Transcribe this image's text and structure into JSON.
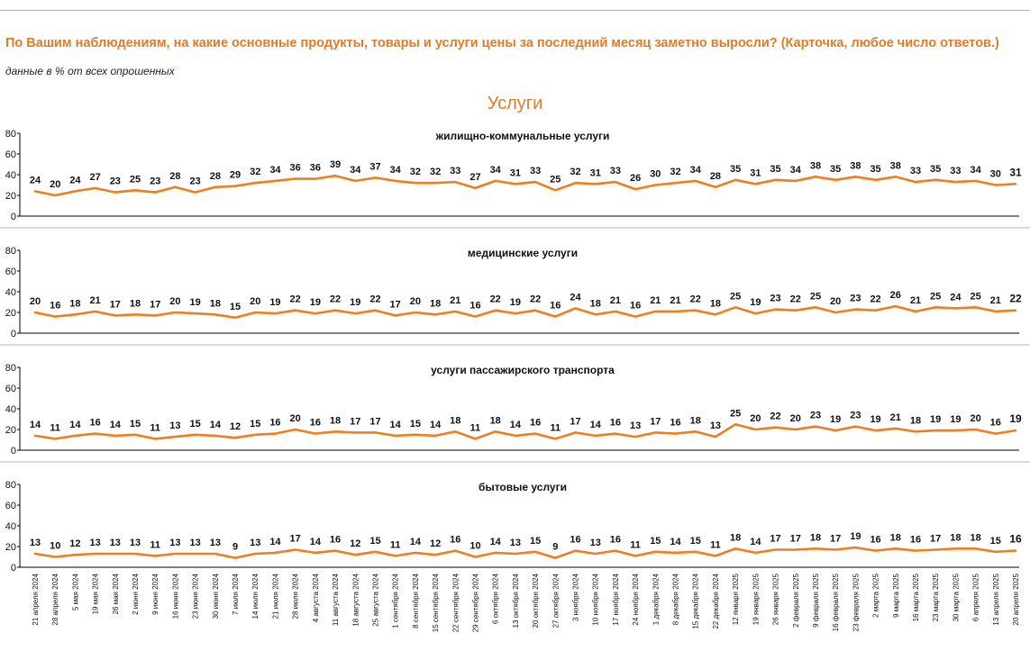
{
  "header": {
    "question": "По Вашим наблюдениям, на какие основные продукты, товары и услуги цены за последний месяц заметно выросли? (Карточка, любое число ответов.)",
    "subtitle": "данные в % от всех опрошенных",
    "section": "Услуги"
  },
  "colors": {
    "accent": "#e07b28",
    "line": "#f07d1e",
    "axis": "#000000",
    "divider": "#b5b5b5"
  },
  "chart_data": [
    {
      "type": "line",
      "title": "жилищно-коммунальные услуги",
      "ylim": [
        0,
        80
      ],
      "yticks": [
        0,
        20,
        40,
        60,
        80
      ],
      "values": [
        24,
        20,
        24,
        27,
        23,
        25,
        23,
        28,
        23,
        28,
        29,
        32,
        34,
        36,
        36,
        39,
        34,
        37,
        34,
        32,
        32,
        33,
        27,
        34,
        31,
        33,
        25,
        32,
        31,
        33,
        26,
        30,
        32,
        34,
        28,
        35,
        31,
        35,
        34,
        38,
        35,
        38,
        35,
        38,
        33,
        35,
        33,
        34,
        30,
        31
      ]
    },
    {
      "type": "line",
      "title": "медицинские услуги",
      "ylim": [
        0,
        80
      ],
      "yticks": [
        0,
        20,
        40,
        60,
        80
      ],
      "values": [
        20,
        16,
        18,
        21,
        17,
        18,
        17,
        20,
        19,
        18,
        15,
        20,
        19,
        22,
        19,
        22,
        19,
        22,
        17,
        20,
        18,
        21,
        16,
        22,
        19,
        22,
        16,
        24,
        18,
        21,
        16,
        21,
        21,
        22,
        18,
        25,
        19,
        23,
        22,
        25,
        20,
        23,
        22,
        26,
        21,
        25,
        24,
        25,
        21,
        22
      ]
    },
    {
      "type": "line",
      "title": "услуги пассажирского транспорта",
      "ylim": [
        0,
        80
      ],
      "yticks": [
        0,
        20,
        40,
        60,
        80
      ],
      "values": [
        14,
        11,
        14,
        16,
        14,
        15,
        11,
        13,
        15,
        14,
        12,
        15,
        16,
        20,
        16,
        18,
        17,
        17,
        14,
        15,
        14,
        18,
        11,
        18,
        14,
        16,
        11,
        17,
        14,
        16,
        13,
        17,
        16,
        18,
        13,
        25,
        20,
        22,
        20,
        23,
        19,
        23,
        19,
        21,
        18,
        19,
        19,
        20,
        16,
        19
      ]
    },
    {
      "type": "line",
      "title": "бытовые услуги",
      "ylim": [
        0,
        80
      ],
      "yticks": [
        0,
        20,
        40,
        60,
        80
      ],
      "values": [
        13,
        10,
        12,
        13,
        13,
        13,
        11,
        13,
        13,
        13,
        9,
        13,
        14,
        17,
        14,
        16,
        12,
        15,
        11,
        14,
        12,
        16,
        10,
        14,
        13,
        15,
        9,
        16,
        13,
        16,
        11,
        15,
        14,
        15,
        11,
        18,
        14,
        17,
        17,
        18,
        17,
        19,
        16,
        18,
        16,
        17,
        18,
        18,
        15,
        16
      ]
    }
  ],
  "x_dates": [
    "21 апреля 2024",
    "28 апреля 2024",
    "5 мая 2024",
    "19 мая 2024",
    "26 мая 2024",
    "2 июня 2024",
    "9 июня 2024",
    "16 июня 2024",
    "23 июня 2024",
    "30 июня 2024",
    "7 июля 2024",
    "14 июля 2024",
    "21 июля 2024",
    "28 июля 2024",
    "4 августа 2024",
    "11 августа 2024",
    "18 августа 2024",
    "25 августа 2024",
    "1 сентября 2024",
    "8 сентября 2024",
    "15 сентября 2024",
    "22 сентября 2024",
    "29 сентября 2024",
    "6 октября 2024",
    "13 октября 2024",
    "20 октября 2024",
    "27 октября 2024",
    "3 ноября 2024",
    "10 ноября 2024",
    "17 ноября 2024",
    "24 ноября 2024",
    "1 декабря 2024",
    "8 декабря 2024",
    "15 декабря 2024",
    "22 декабря 2024",
    "12 января 2025",
    "19 января 2025",
    "26 января 2025",
    "2 февраля 2025",
    "9 февраля 2025",
    "16 февраля 2025",
    "23 февраля 2025",
    "2 марта 2025",
    "9 марта 2025",
    "16 марта 2025",
    "23 марта 2025",
    "30 марта 2025",
    "6 апреля 2025",
    "13 апреля 2025",
    "20 апреля 2025"
  ]
}
